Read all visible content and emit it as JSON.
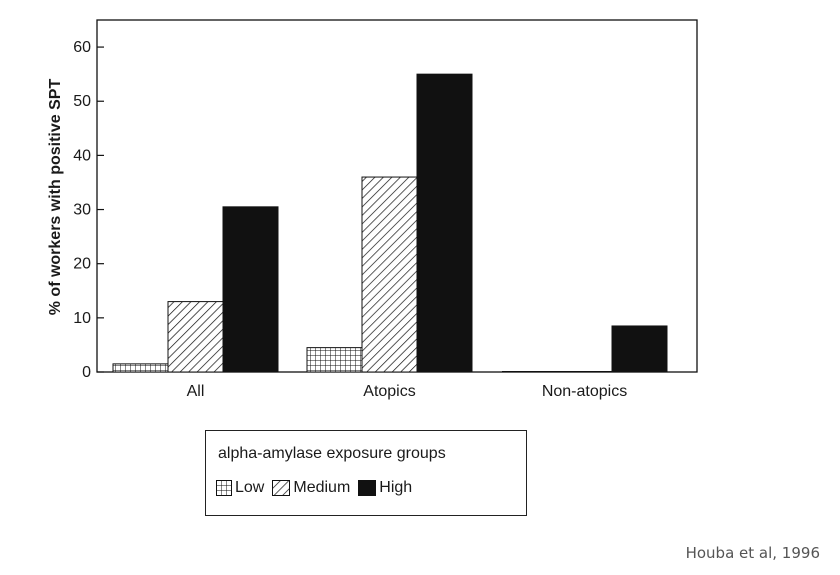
{
  "chart_data": {
    "type": "bar",
    "ylabel": "% of workers with positive SPT",
    "xlabel": "",
    "ylim": [
      0,
      65
    ],
    "yticks": [
      0,
      10,
      20,
      30,
      40,
      50,
      60
    ],
    "categories": [
      "All",
      "Atopics",
      "Non-atopics"
    ],
    "series": [
      {
        "name": "Low",
        "values": [
          1.5,
          4.5,
          0
        ],
        "pattern": "grid"
      },
      {
        "name": "Medium",
        "values": [
          13,
          36,
          0
        ],
        "pattern": "diagonal-hatch"
      },
      {
        "name": "High",
        "values": [
          30.5,
          55,
          8.5
        ],
        "pattern": "solid"
      }
    ],
    "grid": false,
    "legend_placement": "bottom-center",
    "colors": {
      "bar_fill_high": "#111111",
      "pattern_stroke": "#111111",
      "axis": "#111111"
    }
  },
  "legend": {
    "title": "alpha-amylase exposure groups",
    "items": [
      "Low",
      "Medium",
      "High"
    ]
  },
  "source_note": "Houba et al, 1996"
}
